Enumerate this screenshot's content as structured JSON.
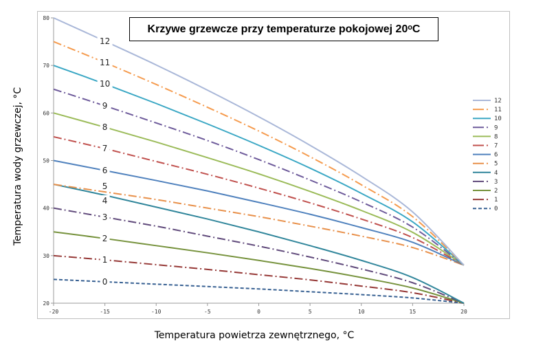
{
  "chart_data": {
    "type": "line",
    "title": "Krzywe grzewcze przy temperaturze pokojowej 20ᵒC",
    "xlabel": "Temperatura powietrza zewnętrznego, °C",
    "ylabel": "Temperatura wody grzewczej, °C",
    "xlim": [
      -20,
      20
    ],
    "ylim": [
      20,
      80
    ],
    "xticks": [
      -20,
      -15,
      -10,
      -5,
      0,
      5,
      10,
      15,
      20
    ],
    "yticks": [
      20,
      30,
      40,
      50,
      60,
      70,
      80
    ],
    "grid": false,
    "legend_placement": "right",
    "x": [
      -20,
      -15,
      -10,
      -5,
      0,
      5,
      10,
      15,
      20
    ],
    "series": [
      {
        "name": "12",
        "color": "#a9b7d8",
        "style": "solid",
        "values": [
          80,
          75.1,
          70.1,
          64.8,
          59.2,
          53.2,
          46.7,
          39.2,
          28
        ]
      },
      {
        "name": "11",
        "color": "#f59b4e",
        "style": "dashdot",
        "values": [
          75,
          70.6,
          66.0,
          61.2,
          56.2,
          50.8,
          44.9,
          38.2,
          28
        ]
      },
      {
        "name": "10",
        "color": "#3aa7c4",
        "style": "solid",
        "values": [
          70,
          66.1,
          62.0,
          57.7,
          53.2,
          48.4,
          43.1,
          37.1,
          28
        ]
      },
      {
        "name": "9",
        "color": "#6d5a9a",
        "style": "dashdot",
        "values": [
          65,
          61.5,
          57.9,
          54.2,
          50.2,
          45.9,
          41.3,
          36.0,
          28
        ]
      },
      {
        "name": "8",
        "color": "#9bbb59",
        "style": "solid",
        "values": [
          60,
          57.0,
          53.9,
          50.6,
          47.2,
          43.5,
          39.5,
          34.9,
          28
        ]
      },
      {
        "name": "7",
        "color": "#c0504d",
        "style": "dashdot",
        "values": [
          55,
          52.5,
          49.8,
          47.1,
          44.2,
          41.1,
          37.7,
          33.8,
          28
        ]
      },
      {
        "name": "6",
        "color": "#4f81bd",
        "style": "solid",
        "values": [
          50,
          47.9,
          45.8,
          43.6,
          41.2,
          38.7,
          35.9,
          32.8,
          28
        ]
      },
      {
        "name": "5",
        "color": "#e8904a",
        "style": "dashdot",
        "values": [
          45,
          43.4,
          41.8,
          40.0,
          38.2,
          36.2,
          34.1,
          31.7,
          28
        ]
      },
      {
        "name": "4",
        "color": "#31869b",
        "style": "solid",
        "values": [
          45,
          42.7,
          40.2,
          37.7,
          35.0,
          32.1,
          29.0,
          25.4,
          20
        ]
      },
      {
        "name": "3",
        "color": "#604a7b",
        "style": "dashdot",
        "values": [
          40,
          38.1,
          36.2,
          34.1,
          32.0,
          29.7,
          27.2,
          24.3,
          20
        ]
      },
      {
        "name": "2",
        "color": "#76923c",
        "style": "solid",
        "values": [
          35,
          33.6,
          32.1,
          30.6,
          29.0,
          27.3,
          25.4,
          23.2,
          20
        ]
      },
      {
        "name": "1",
        "color": "#953735",
        "style": "dashdot",
        "values": [
          30,
          29.1,
          28.1,
          27.1,
          26.0,
          24.9,
          23.6,
          22.2,
          20
        ]
      },
      {
        "name": "0",
        "color": "#376092",
        "style": "dashed",
        "values": [
          25,
          24.5,
          24.0,
          23.5,
          23.0,
          22.4,
          21.8,
          21.1,
          20
        ]
      }
    ],
    "curve_label_x": -15
  }
}
